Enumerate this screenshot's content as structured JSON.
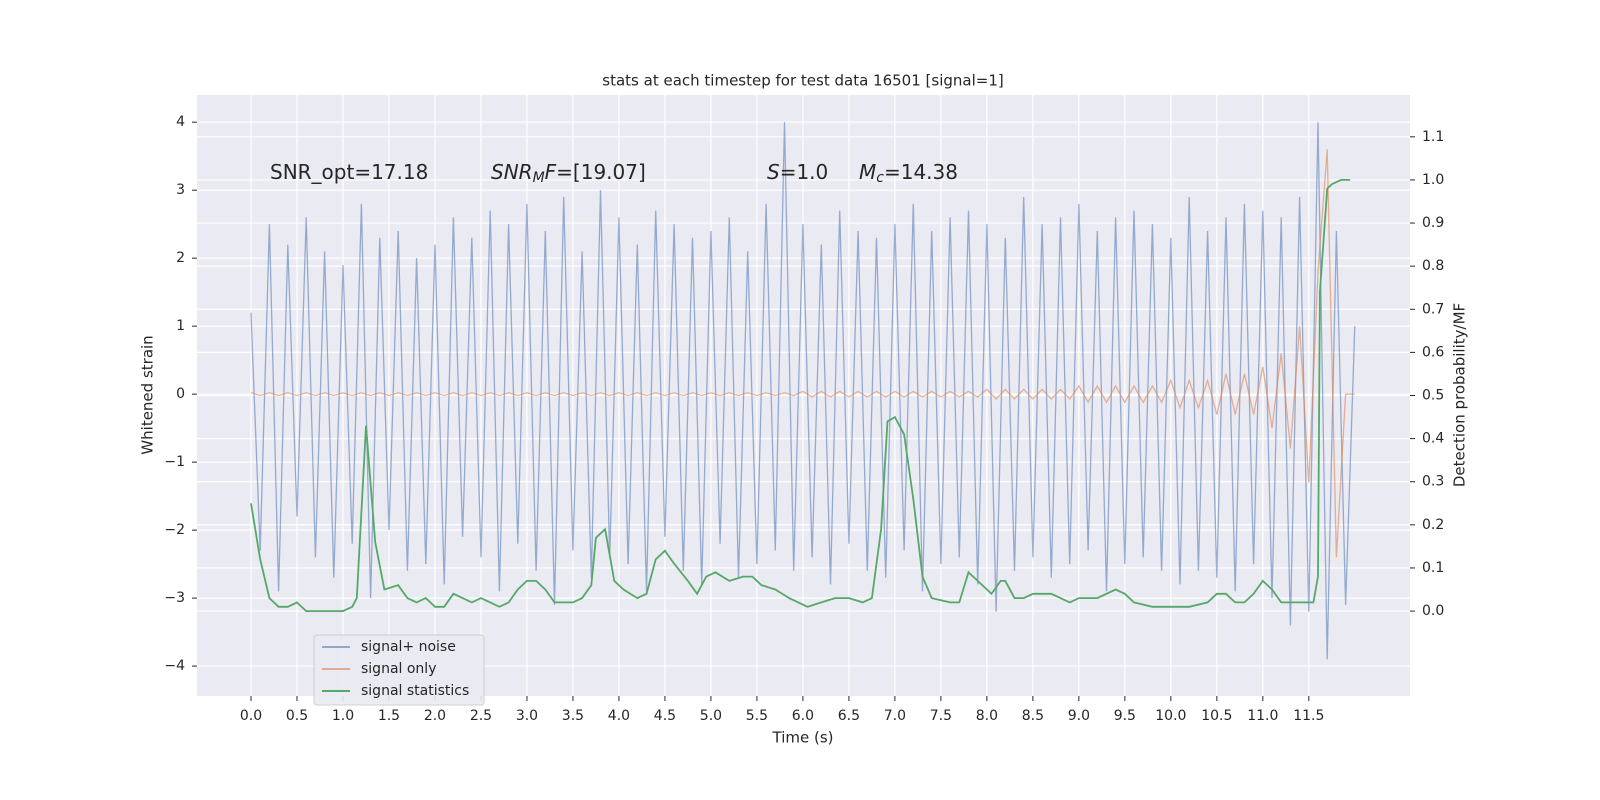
{
  "chart_data": {
    "type": "line",
    "title": "stats at each timestep for test data 16501 [signal=1]",
    "xlabel": "Time (s)",
    "ylabel": "Whitened strain",
    "y2label": "Detection probability/MF",
    "annotations": [
      [
        {
          "text": "SNR_opt=17.18"
        }
      ],
      [
        {
          "text": "SNR",
          "italic": true
        },
        {
          "text": "M",
          "italic": true,
          "sub": true
        },
        {
          "text": "F",
          "italic": true
        },
        {
          "text": "=[19.07]"
        }
      ],
      [
        {
          "text": "S",
          "italic": true
        },
        {
          "text": "=1.0"
        }
      ],
      [
        {
          "text": "M",
          "italic": true
        },
        {
          "text": "c",
          "italic": true,
          "sub": true
        },
        {
          "text": "=14.38"
        }
      ]
    ],
    "grid": true,
    "legend": "lower left",
    "xlim": [
      -0.587,
      12.6
    ],
    "ylim": [
      -4.44,
      4.4
    ],
    "y2lim": [
      -0.197,
      1.197
    ],
    "xticks": [
      {
        "value": 0,
        "label": "0.0"
      },
      0.5,
      {
        "value": 1,
        "label": "1.0"
      },
      1.5,
      {
        "value": 2,
        "label": "2.0"
      },
      2.5,
      {
        "value": 3,
        "label": "3.0"
      },
      3.5,
      {
        "value": 4,
        "label": "4.0"
      },
      4.5,
      {
        "value": 5,
        "label": "5.0"
      },
      5.5,
      {
        "value": 6,
        "label": "6.0"
      },
      6.5,
      {
        "value": 7,
        "label": "7.0"
      },
      7.5,
      {
        "value": 8,
        "label": "8.0"
      },
      8.5,
      {
        "value": 9,
        "label": "9.0"
      },
      9.5,
      {
        "value": 10,
        "label": "10.0"
      },
      10.5,
      {
        "value": 11,
        "label": "11.0"
      },
      11.5
    ],
    "yticks": [
      {
        "value": -4,
        "label": "−4"
      },
      {
        "value": -3,
        "label": "−3"
      },
      {
        "value": -2,
        "label": "−2"
      },
      {
        "value": -1,
        "label": "−1"
      },
      0,
      1,
      2,
      3,
      4
    ],
    "y2ticks": [
      {
        "value": 0,
        "label": "0.0"
      },
      0.1,
      0.2,
      0.3,
      0.4,
      0.5,
      0.6,
      0.7,
      0.8,
      0.9,
      {
        "value": 1,
        "label": "1.0"
      },
      1.1
    ],
    "x": [
      0,
      0.1,
      0.2,
      0.3,
      0.4,
      0.5,
      0.6,
      0.7,
      0.8,
      0.9,
      1,
      1.1,
      1.2,
      1.3,
      1.4,
      1.5,
      1.6,
      1.7,
      1.8,
      1.9,
      2,
      2.1,
      2.2,
      2.3,
      2.4,
      2.5,
      2.6,
      2.7,
      2.8,
      2.9,
      3,
      3.1,
      3.2,
      3.3,
      3.4,
      3.5,
      3.6,
      3.7,
      3.8,
      3.9,
      4,
      4.1,
      4.2,
      4.3,
      4.4,
      4.5,
      4.6,
      4.7,
      4.8,
      4.9,
      5,
      5.1,
      5.2,
      5.3,
      5.4,
      5.5,
      5.6,
      5.7,
      5.8,
      5.9,
      6,
      6.1,
      6.2,
      6.3,
      6.4,
      6.5,
      6.6,
      6.7,
      6.8,
      6.9,
      7,
      7.1,
      7.2,
      7.3,
      7.4,
      7.5,
      7.6,
      7.7,
      7.8,
      7.9,
      8,
      8.1,
      8.2,
      8.3,
      8.4,
      8.5,
      8.6,
      8.7,
      8.8,
      8.9,
      9,
      9.1,
      9.2,
      9.3,
      9.4,
      9.5,
      9.6,
      9.7,
      9.8,
      9.9,
      10,
      10.1,
      10.2,
      10.3,
      10.4,
      10.5,
      10.6,
      10.7,
      10.8,
      10.9,
      11,
      11.1,
      11.2,
      11.3,
      11.4,
      11.5,
      11.6,
      11.7,
      11.8,
      11.9,
      12
    ],
    "series": [
      {
        "name": "signal+ noise",
        "color": "#4c72b0",
        "values": [
          1.2,
          -2.3,
          2.5,
          -2.9,
          2.2,
          -1.8,
          2.6,
          -2.4,
          2.1,
          -2.7,
          1.9,
          -2.2,
          2.8,
          -3.0,
          2.3,
          -2.0,
          2.4,
          -2.6,
          2.0,
          -2.5,
          2.2,
          -2.8,
          2.6,
          -2.1,
          2.3,
          -2.4,
          2.7,
          -2.9,
          2.5,
          -2.2,
          2.8,
          -2.6,
          2.4,
          -3.1,
          2.9,
          -2.3,
          2.1,
          -2.7,
          3.0,
          -2.4,
          2.6,
          -2.5,
          2.2,
          -2.9,
          2.7,
          -2.1,
          2.5,
          -2.6,
          2.3,
          -2.8,
          2.4,
          -2.2,
          2.6,
          -2.7,
          2.1,
          -2.5,
          2.8,
          -2.3,
          4.0,
          -2.6,
          2.5,
          -2.4,
          2.2,
          -2.8,
          2.7,
          -2.2,
          2.4,
          -2.6,
          2.3,
          -2.7,
          2.5,
          -2.3,
          2.8,
          -2.9,
          2.4,
          -2.5,
          2.6,
          -2.4,
          2.7,
          -2.8,
          2.5,
          -3.2,
          2.3,
          -2.6,
          2.9,
          -2.4,
          2.5,
          -2.7,
          2.6,
          -2.5,
          2.8,
          -2.3,
          2.4,
          -2.9,
          2.6,
          -2.5,
          2.7,
          -2.4,
          2.5,
          -2.6,
          2.3,
          -2.8,
          2.9,
          -2.6,
          2.4,
          -2.7,
          2.6,
          -2.9,
          2.8,
          -2.5,
          2.7,
          -3.0,
          2.6,
          -3.4,
          2.9,
          -3.2,
          4.0,
          -3.9,
          2.4,
          -3.1,
          1.0
        ]
      },
      {
        "name": "signal only",
        "color": "#dd8452",
        "values": [
          0.02,
          -0.02,
          0.02,
          -0.02,
          0.02,
          -0.02,
          0.02,
          -0.02,
          0.02,
          -0.02,
          0.02,
          -0.02,
          0.02,
          -0.02,
          0.02,
          -0.02,
          0.02,
          -0.02,
          0.02,
          -0.02,
          0.02,
          -0.02,
          0.02,
          -0.02,
          0.02,
          -0.02,
          0.02,
          -0.02,
          0.02,
          -0.02,
          0.02,
          -0.02,
          0.02,
          -0.02,
          0.02,
          -0.02,
          0.02,
          -0.02,
          0.02,
          -0.02,
          0.02,
          -0.02,
          0.02,
          -0.02,
          0.02,
          -0.02,
          0.02,
          -0.02,
          0.02,
          -0.02,
          0.02,
          -0.02,
          0.02,
          -0.02,
          0.02,
          -0.02,
          0.02,
          -0.02,
          0.02,
          -0.02,
          0.04,
          -0.04,
          0.04,
          -0.04,
          0.04,
          -0.04,
          0.04,
          -0.04,
          0.04,
          -0.04,
          0.04,
          -0.04,
          0.04,
          -0.04,
          0.04,
          -0.04,
          0.04,
          -0.04,
          0.04,
          -0.04,
          0.07,
          -0.07,
          0.07,
          -0.07,
          0.07,
          -0.07,
          0.07,
          -0.07,
          0.07,
          -0.07,
          0.12,
          -0.12,
          0.12,
          -0.12,
          0.12,
          -0.12,
          0.12,
          -0.12,
          0.12,
          -0.12,
          0.2,
          -0.2,
          0.2,
          -0.2,
          0.2,
          -0.3,
          0.3,
          -0.3,
          0.3,
          -0.3,
          0.4,
          -0.5,
          0.6,
          -0.8,
          1.0,
          -1.3,
          1.8,
          3.6,
          -2.4,
          0,
          0
        ]
      },
      {
        "name": "signal statistics",
        "color": "#55a868",
        "axis": "y2",
        "x": [
          0,
          0.1,
          0.2,
          0.3,
          0.4,
          0.5,
          0.6,
          0.8,
          1.0,
          1.1,
          1.15,
          1.25,
          1.35,
          1.45,
          1.6,
          1.7,
          1.8,
          1.9,
          2.0,
          2.1,
          2.2,
          2.3,
          2.4,
          2.5,
          2.6,
          2.7,
          2.8,
          2.9,
          3.0,
          3.1,
          3.2,
          3.3,
          3.4,
          3.5,
          3.6,
          3.7,
          3.75,
          3.85,
          3.95,
          4.05,
          4.2,
          4.3,
          4.4,
          4.5,
          4.6,
          4.75,
          4.85,
          4.95,
          5.05,
          5.2,
          5.35,
          5.45,
          5.55,
          5.7,
          5.85,
          5.95,
          6.05,
          6.2,
          6.35,
          6.5,
          6.65,
          6.75,
          6.85,
          6.92,
          7.0,
          7.1,
          7.2,
          7.3,
          7.4,
          7.6,
          7.7,
          7.8,
          7.9,
          8.0,
          8.05,
          8.15,
          8.2,
          8.3,
          8.4,
          8.5,
          8.6,
          8.7,
          8.8,
          8.9,
          9.0,
          9.2,
          9.4,
          9.5,
          9.6,
          9.8,
          10.0,
          10.2,
          10.4,
          10.5,
          10.6,
          10.7,
          10.8,
          10.9,
          11.0,
          11.1,
          11.2,
          11.3,
          11.4,
          11.5,
          11.55,
          11.6,
          11.62,
          11.7,
          11.75,
          11.85,
          11.95
        ],
        "values": [
          0.25,
          0.12,
          0.03,
          0.01,
          0.01,
          0.02,
          0.0,
          0.0,
          0.0,
          0.01,
          0.03,
          0.43,
          0.16,
          0.05,
          0.06,
          0.03,
          0.02,
          0.03,
          0.01,
          0.01,
          0.04,
          0.03,
          0.02,
          0.03,
          0.02,
          0.01,
          0.02,
          0.05,
          0.07,
          0.07,
          0.05,
          0.02,
          0.02,
          0.02,
          0.03,
          0.06,
          0.17,
          0.19,
          0.07,
          0.05,
          0.03,
          0.04,
          0.12,
          0.14,
          0.11,
          0.07,
          0.04,
          0.08,
          0.09,
          0.07,
          0.08,
          0.08,
          0.06,
          0.05,
          0.03,
          0.02,
          0.01,
          0.02,
          0.03,
          0.03,
          0.02,
          0.03,
          0.19,
          0.44,
          0.45,
          0.41,
          0.26,
          0.08,
          0.03,
          0.02,
          0.02,
          0.09,
          0.07,
          0.05,
          0.04,
          0.07,
          0.07,
          0.03,
          0.03,
          0.04,
          0.04,
          0.04,
          0.03,
          0.02,
          0.03,
          0.03,
          0.05,
          0.04,
          0.02,
          0.01,
          0.01,
          0.01,
          0.02,
          0.04,
          0.04,
          0.02,
          0.02,
          0.04,
          0.07,
          0.05,
          0.02,
          0.02,
          0.02,
          0.02,
          0.02,
          0.08,
          0.74,
          0.98,
          0.99,
          1.0,
          1.0
        ]
      }
    ]
  }
}
